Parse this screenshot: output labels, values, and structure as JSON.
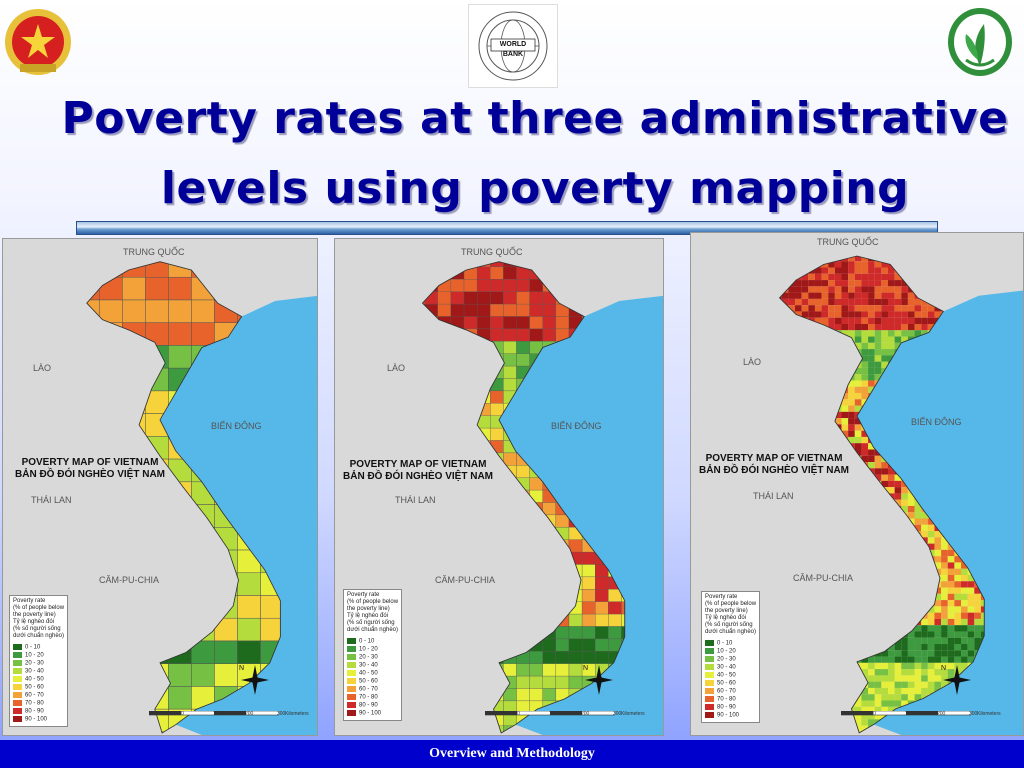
{
  "title": {
    "line1": "Poverty rates at three administrative",
    "line2": "levels using poverty mapping"
  },
  "footer": "Overview and Methodology",
  "logos": {
    "center_text": "WORLD BANK",
    "center_ring": "INTERNATIONAL BANK FOR RECONSTRUCTION AND DEVELOPMENT"
  },
  "map_labels": {
    "china": "TRUNG QUỐC",
    "laos": "LÀO",
    "sea": "BIỂN ĐÔNG",
    "thailand": "THÁI LAN",
    "cambodia": "CĂM-PU-CHIA",
    "map_title_en": "POVERTY MAP OF VIETNAM",
    "map_title_vn": "BẢN ĐỒ ĐÓI NGHÈO VIỆT NAM"
  },
  "legend": {
    "heading": [
      "Poverty rate",
      "(% of people below",
      "the poverty line)",
      "Tỷ lệ nghèo đói",
      "(% số người sống",
      "dưới chuẩn nghèo)"
    ],
    "classes": [
      {
        "label": "0 - 10",
        "color": "#1e6b1e"
      },
      {
        "label": "10 - 20",
        "color": "#3e9a3e"
      },
      {
        "label": "20 - 30",
        "color": "#76c043"
      },
      {
        "label": "30 - 40",
        "color": "#b4dc3c"
      },
      {
        "label": "40 - 50",
        "color": "#e6ef3a"
      },
      {
        "label": "50 - 60",
        "color": "#f6d33a"
      },
      {
        "label": "60 - 70",
        "color": "#f3a23a"
      },
      {
        "label": "70 - 80",
        "color": "#e8632b"
      },
      {
        "label": "80 - 90",
        "color": "#cf2a2a"
      },
      {
        "label": "90 - 100",
        "color": "#a01818"
      }
    ]
  },
  "scale": {
    "ticks": [
      "100",
      "0",
      "100",
      "200",
      "300"
    ],
    "unit": "Kilometers"
  },
  "north": "N",
  "colors": {
    "sea": "#55b8e8",
    "land": "#d9d9d9",
    "title": "#000099",
    "footer": "#0000cc"
  }
}
